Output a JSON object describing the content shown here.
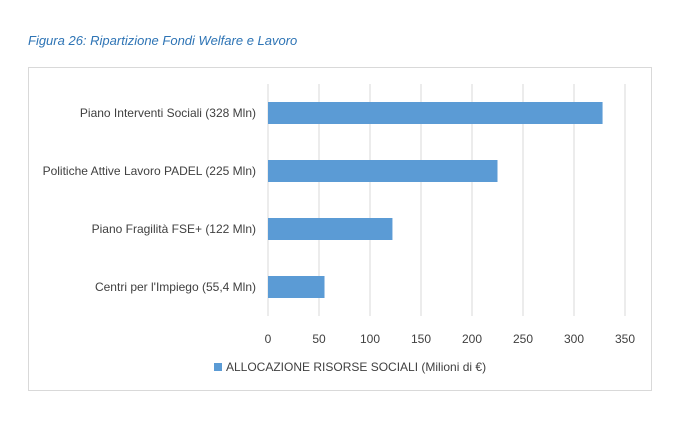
{
  "figure": {
    "caption": "Figura 26: Ripartizione Fondi Welfare e Lavoro"
  },
  "chart_data": {
    "type": "bar",
    "orientation": "horizontal",
    "categories": [
      "Piano Interventi Sociali (328 Mln)",
      "Politiche Attive Lavoro PADEL (225 Mln)",
      "Piano Fragilità FSE+ (122 Mln)",
      "Centri per l'Impiego (55,4 Mln)"
    ],
    "series": [
      {
        "name": "ALLOCAZIONE RISORSE SOCIALI (Milioni di €)",
        "values": [
          328,
          225,
          122,
          55.4
        ],
        "color": "#5b9bd5"
      }
    ],
    "xlim": [
      0,
      350
    ],
    "xticks": [
      "0",
      "50",
      "100",
      "150",
      "200",
      "250",
      "300",
      "350"
    ],
    "grid": true,
    "legend_position": "bottom"
  }
}
